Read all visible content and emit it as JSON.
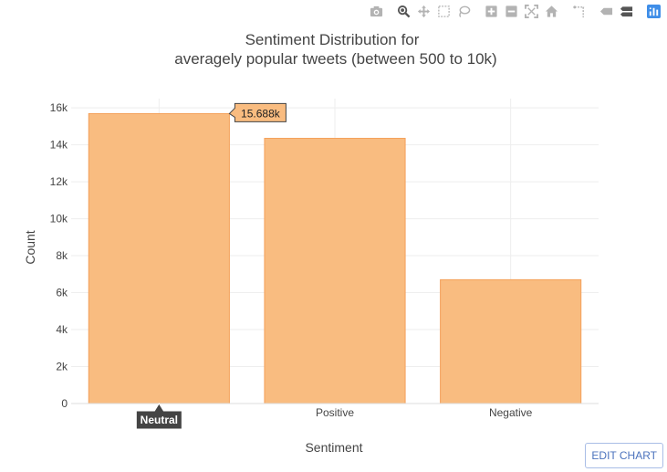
{
  "modebar": {
    "icons": [
      "camera-icon",
      "zoom-icon",
      "pan-icon",
      "box-select-icon",
      "lasso-select-icon",
      "zoom-in-icon",
      "zoom-out-icon",
      "autoscale-icon",
      "reset-axes-icon",
      "spike-lines-icon",
      "hover-closest-icon",
      "hover-compare-icon",
      "plotly-logo-icon"
    ],
    "icon_color": "#b3b3b3",
    "active_color": "#555555",
    "logo_color": "#3f8ee8"
  },
  "edit_chart_label": "EDIT CHART",
  "chart_data": {
    "type": "bar",
    "title": [
      "Sentiment Distribution for",
      "averagely popular tweets (between 500 to 10k)"
    ],
    "xlabel": "Sentiment",
    "ylabel": "Count",
    "categories": [
      "Neutral",
      "Positive",
      "Negative"
    ],
    "values": [
      15688,
      14350,
      6700
    ],
    "ylim": [
      0,
      16500
    ],
    "yticks": [
      0,
      2000,
      4000,
      6000,
      8000,
      10000,
      12000,
      14000,
      16000
    ],
    "ytick_labels": [
      "0",
      "2k",
      "4k",
      "6k",
      "8k",
      "10k",
      "12k",
      "14k",
      "16k"
    ],
    "grid": true,
    "bar_color": "#f9bc80",
    "bar_edge_color": "#f4a05a",
    "hover": {
      "category_index": 0,
      "value_label": "15.688k",
      "category_label": "Neutral"
    }
  }
}
